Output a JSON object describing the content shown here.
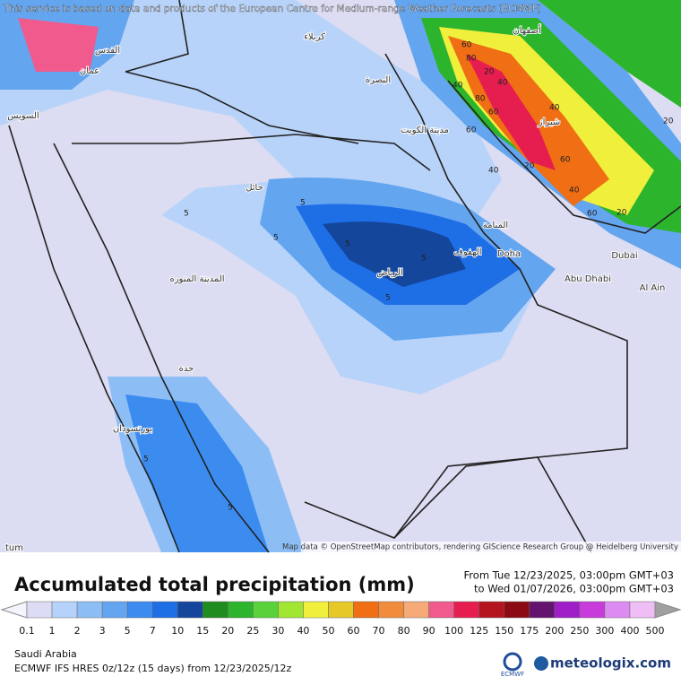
{
  "header": {
    "notice": "This service is based on data and products of the European Centre for Medium-range Weather Forecasts (ECMWF)",
    "attribution": "Map data © OpenStreetMap contributors, rendering GIScience Research Group @ Heidelberg University"
  },
  "map": {
    "cities": [
      "Doha",
      "Abu Dhabi",
      "Dubai",
      "Al Ain",
      "الرياض",
      "المنامة",
      "الهفوف",
      "مدينة الكويت",
      "البصرة",
      "كربلاء",
      "أصفهان",
      "شيراز",
      "حائل",
      "المدينة المنورة",
      "جدة",
      "بورتسودان",
      "السويس",
      "القدس",
      "عمان",
      "tum"
    ],
    "contour_labels": [
      "5",
      "5",
      "5",
      "5",
      "5",
      "5",
      "5",
      "5",
      "20",
      "40",
      "60",
      "80",
      "60",
      "40",
      "20",
      "40",
      "60",
      "20",
      "40",
      "60",
      "80",
      "40",
      "20",
      "60"
    ]
  },
  "footer": {
    "title": "Accumulated total precipitation (mm)",
    "from": "From Tue 12/23/2025, 03:00pm GMT+03",
    "to": "to Wed 01/07/2026, 03:00pm GMT+03",
    "legend": {
      "labels": [
        "0.1",
        "1",
        "2",
        "3",
        "5",
        "7",
        "10",
        "15",
        "20",
        "25",
        "30",
        "40",
        "50",
        "60",
        "70",
        "80",
        "90",
        "100",
        "125",
        "150",
        "175",
        "200",
        "250",
        "300",
        "400",
        "500"
      ],
      "colors": [
        "#f4f4fc",
        "#dcdcf5",
        "#b4d2fa",
        "#8cbef5",
        "#64a5f0",
        "#3c8cf0",
        "#1e6ee6",
        "#14469b",
        "#1e8c1e",
        "#2db42d",
        "#5ad23c",
        "#a0e632",
        "#f0f03c",
        "#e6c828",
        "#f06e14",
        "#f08c3c",
        "#f5aa78",
        "#f05a8c",
        "#e61e50",
        "#b4141e",
        "#8c0a14",
        "#64146e",
        "#a01ec8",
        "#c83cdc",
        "#dc8cf0",
        "#eebef5",
        "#f5e6f5",
        "#d2d2d2",
        "#a0a0a0"
      ]
    },
    "region": "Saudi Arabia",
    "model": "ECMWF IFS HRES 0z/12z (15 days) from  12/23/2025/12z",
    "logo_small": "ECMWF",
    "logo": "meteologix.com"
  }
}
